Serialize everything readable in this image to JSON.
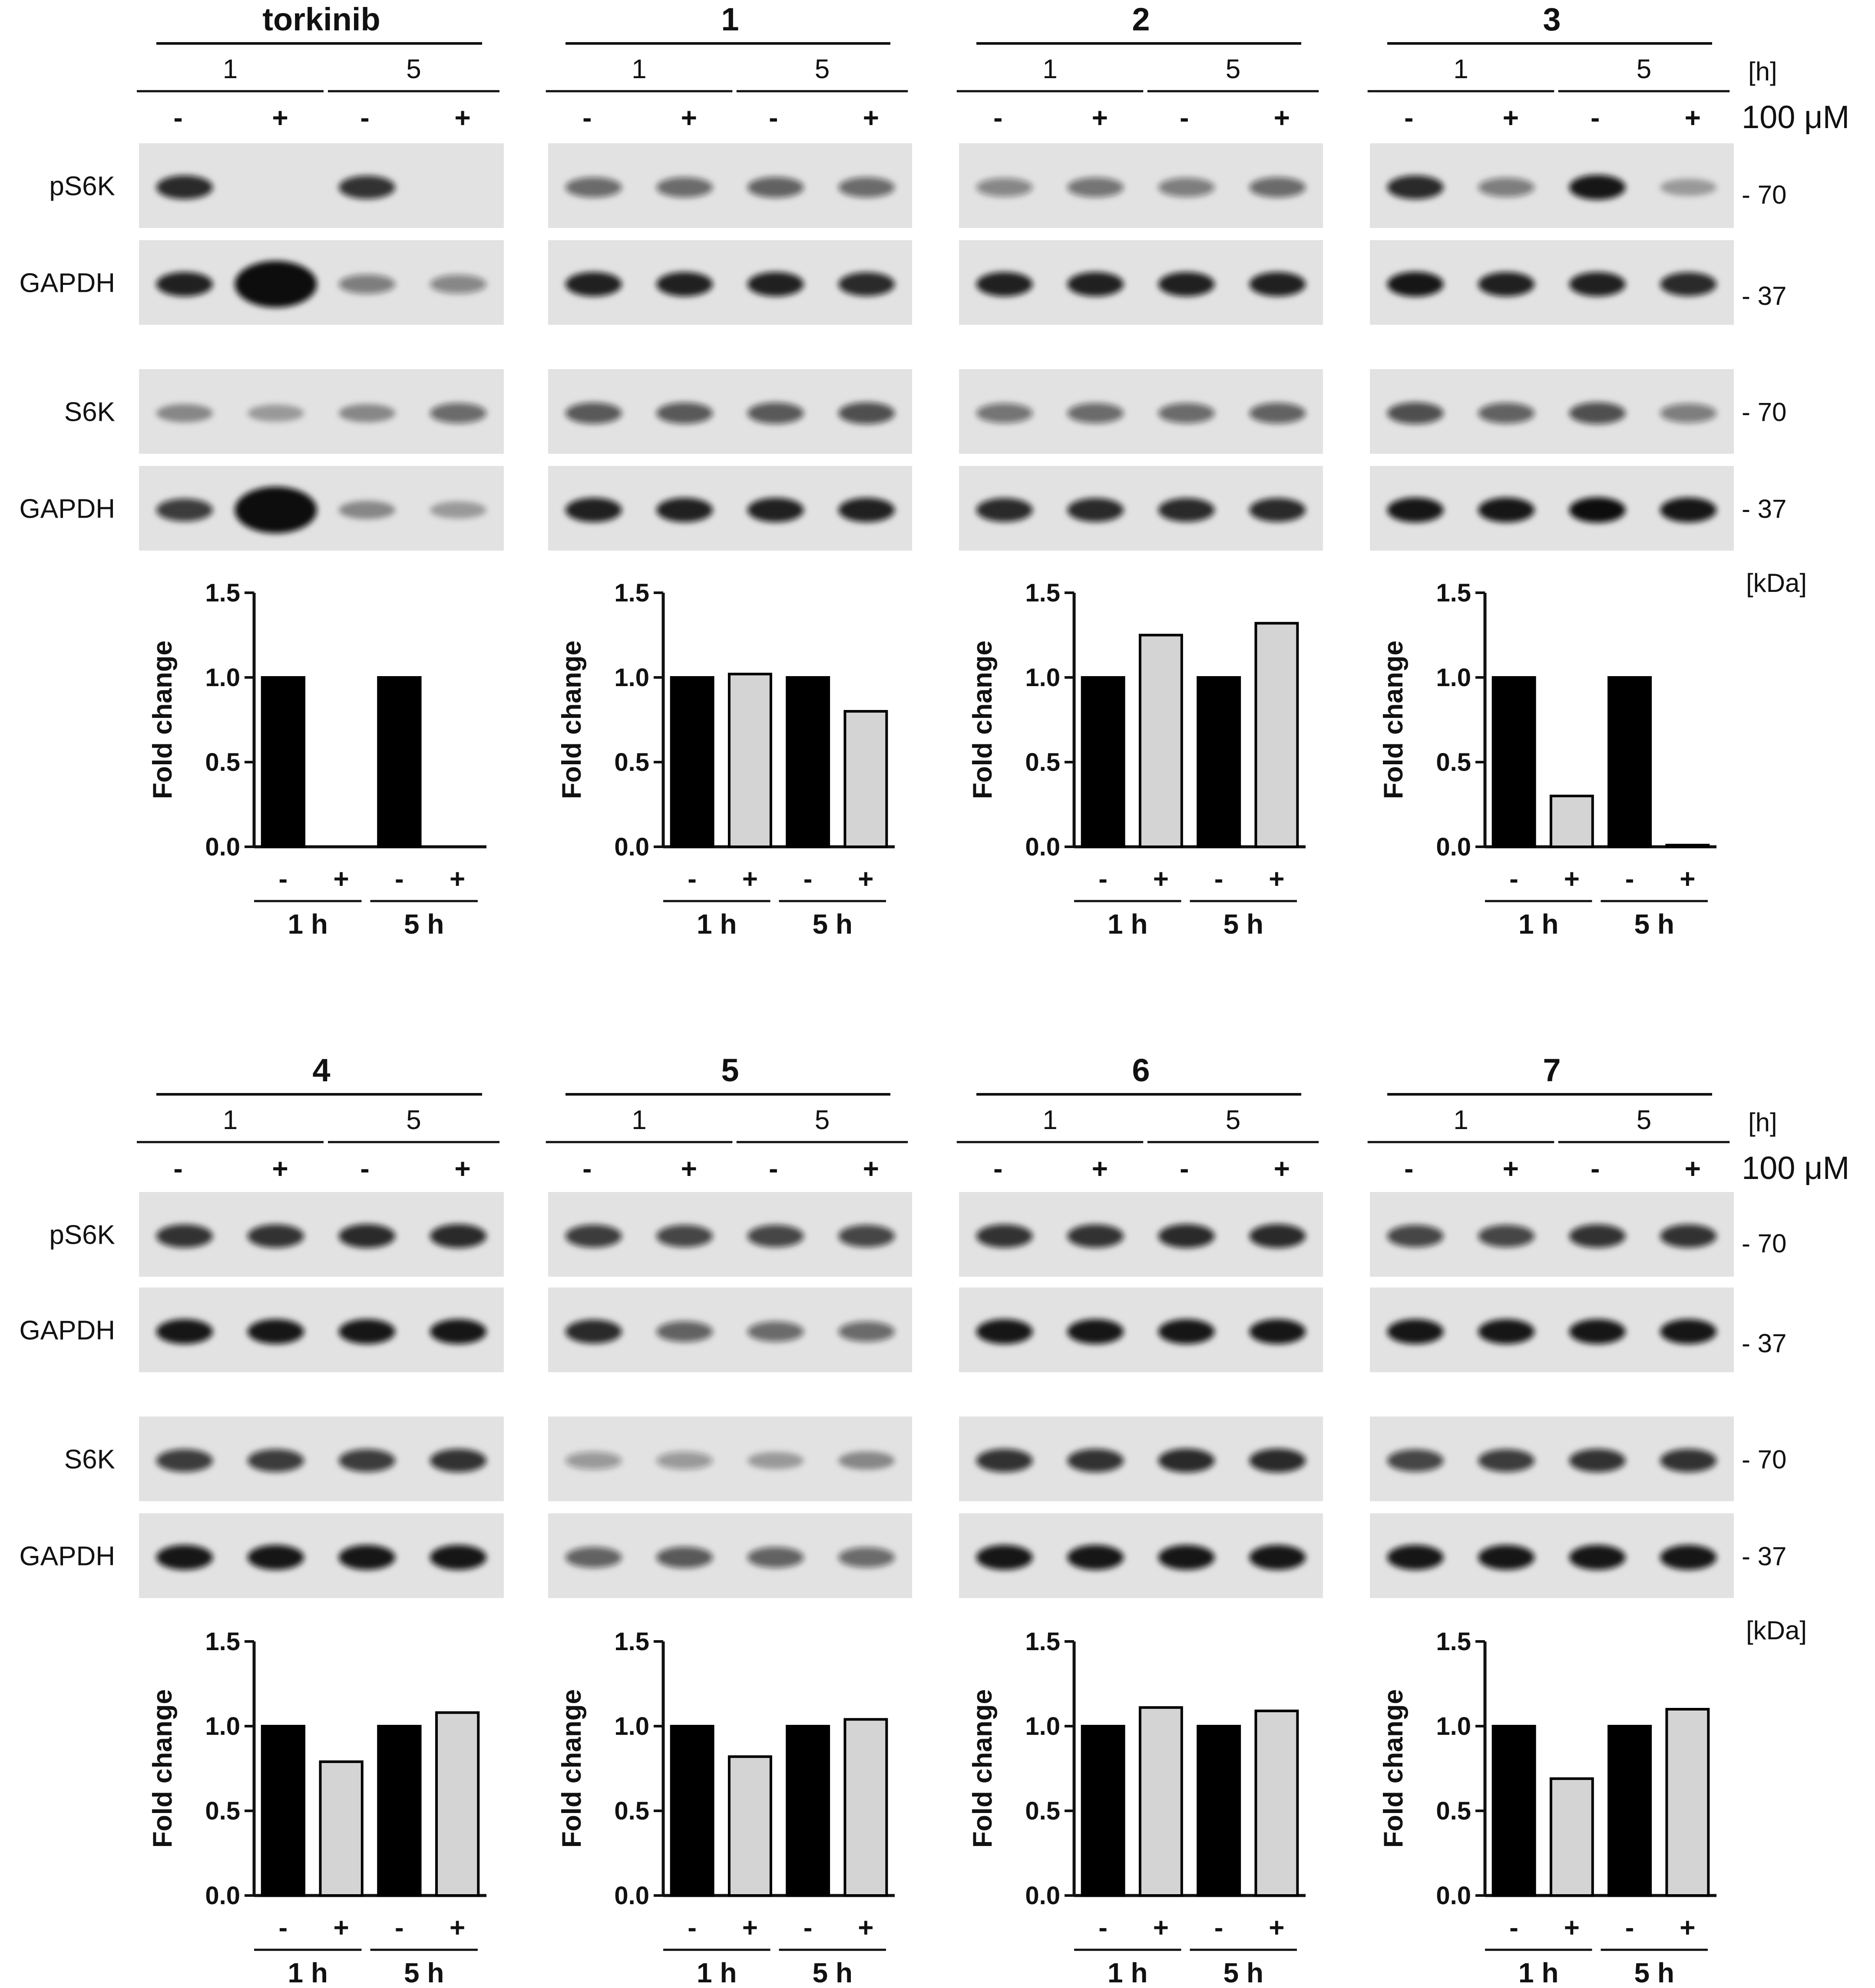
{
  "figure": {
    "row_labels": [
      "pS6K",
      "GAPDH",
      "S6K",
      "GAPDH"
    ],
    "kda_markers": [
      "- 70",
      "- 37",
      "- 70",
      "- 37"
    ],
    "kda_unit": "[kDa]",
    "time_unit": "[h]",
    "concentration": "100 μM",
    "panels": [
      {
        "title": "torkinib",
        "time_labels": [
          "1",
          "5"
        ],
        "treatments": [
          "-",
          "+",
          "-",
          "+"
        ]
      },
      {
        "title": "1",
        "time_labels": [
          "1",
          "5"
        ],
        "treatments": [
          "-",
          "+",
          "-",
          "+"
        ]
      },
      {
        "title": "2",
        "time_labels": [
          "1",
          "5"
        ],
        "treatments": [
          "-",
          "+",
          "-",
          "+"
        ]
      },
      {
        "title": "3",
        "time_labels": [
          "1",
          "5"
        ],
        "treatments": [
          "-",
          "+",
          "-",
          "+"
        ]
      },
      {
        "title": "4",
        "time_labels": [
          "1",
          "5"
        ],
        "treatments": [
          "-",
          "+",
          "-",
          "+"
        ]
      },
      {
        "title": "5",
        "time_labels": [
          "1",
          "5"
        ],
        "treatments": [
          "-",
          "+",
          "-",
          "+"
        ]
      },
      {
        "title": "6",
        "time_labels": [
          "1",
          "5"
        ],
        "treatments": [
          "-",
          "+",
          "-",
          "+"
        ]
      },
      {
        "title": "7",
        "time_labels": [
          "1",
          "5"
        ],
        "treatments": [
          "-",
          "+",
          "-",
          "+"
        ]
      }
    ]
  },
  "chart_data": [
    {
      "type": "bar",
      "panel": "torkinib",
      "ylabel": "Fold change",
      "ylim": [
        0,
        1.5
      ],
      "yticks": [
        "0.0",
        "0.5",
        "1.0",
        "1.5"
      ],
      "treatments": [
        "-",
        "+",
        "-",
        "+"
      ],
      "groups": [
        "1 h",
        "5 h"
      ],
      "values": [
        1.0,
        0.0,
        1.0,
        0.0
      ]
    },
    {
      "type": "bar",
      "panel": "1",
      "ylabel": "Fold change",
      "ylim": [
        0,
        1.5
      ],
      "yticks": [
        "0.0",
        "0.5",
        "1.0",
        "1.5"
      ],
      "treatments": [
        "-",
        "+",
        "-",
        "+"
      ],
      "groups": [
        "1 h",
        "5 h"
      ],
      "values": [
        1.0,
        1.02,
        1.0,
        0.8
      ]
    },
    {
      "type": "bar",
      "panel": "2",
      "ylabel": "Fold change",
      "ylim": [
        0,
        1.5
      ],
      "yticks": [
        "0.0",
        "0.5",
        "1.0",
        "1.5"
      ],
      "treatments": [
        "-",
        "+",
        "-",
        "+"
      ],
      "groups": [
        "1 h",
        "5 h"
      ],
      "values": [
        1.0,
        1.25,
        1.0,
        1.32
      ]
    },
    {
      "type": "bar",
      "panel": "3",
      "ylabel": "Fold change",
      "ylim": [
        0,
        1.5
      ],
      "yticks": [
        "0.0",
        "0.5",
        "1.0",
        "1.5"
      ],
      "treatments": [
        "-",
        "+",
        "-",
        "+"
      ],
      "groups": [
        "1 h",
        "5 h"
      ],
      "values": [
        1.0,
        0.3,
        1.0,
        0.01
      ]
    },
    {
      "type": "bar",
      "panel": "4",
      "ylabel": "Fold change",
      "ylim": [
        0,
        1.5
      ],
      "yticks": [
        "0.0",
        "0.5",
        "1.0",
        "1.5"
      ],
      "treatments": [
        "-",
        "+",
        "-",
        "+"
      ],
      "groups": [
        "1 h",
        "5 h"
      ],
      "values": [
        1.0,
        0.79,
        1.0,
        1.08
      ]
    },
    {
      "type": "bar",
      "panel": "5",
      "ylabel": "Fold change",
      "ylim": [
        0,
        1.5
      ],
      "yticks": [
        "0.0",
        "0.5",
        "1.0",
        "1.5"
      ],
      "treatments": [
        "-",
        "+",
        "-",
        "+"
      ],
      "groups": [
        "1 h",
        "5 h"
      ],
      "values": [
        1.0,
        0.82,
        1.0,
        1.04
      ]
    },
    {
      "type": "bar",
      "panel": "6",
      "ylabel": "Fold change",
      "ylim": [
        0,
        1.5
      ],
      "yticks": [
        "0.0",
        "0.5",
        "1.0",
        "1.5"
      ],
      "treatments": [
        "-",
        "+",
        "-",
        "+"
      ],
      "groups": [
        "1 h",
        "5 h"
      ],
      "values": [
        1.0,
        1.11,
        1.0,
        1.09
      ]
    },
    {
      "type": "bar",
      "panel": "7",
      "ylabel": "Fold change",
      "ylim": [
        0,
        1.5
      ],
      "yticks": [
        "0.0",
        "0.5",
        "1.0",
        "1.5"
      ],
      "treatments": [
        "-",
        "+",
        "-",
        "+"
      ],
      "groups": [
        "1 h",
        "5 h"
      ],
      "values": [
        1.0,
        0.69,
        1.0,
        1.1
      ]
    }
  ],
  "blots": [
    {
      "panel": "torkinib",
      "strips": [
        [
          0.85,
          0,
          0.8,
          0
        ],
        [
          0.9,
          1.0,
          0.4,
          0.35
        ],
        [
          0.3,
          0.2,
          0.3,
          0.5
        ],
        [
          0.75,
          1.0,
          0.3,
          0.2
        ]
      ]
    },
    {
      "panel": "1",
      "strips": [
        [
          0.5,
          0.5,
          0.55,
          0.5
        ],
        [
          0.9,
          0.9,
          0.9,
          0.85
        ],
        [
          0.6,
          0.6,
          0.6,
          0.65
        ],
        [
          0.9,
          0.9,
          0.9,
          0.9
        ]
      ]
    },
    {
      "panel": "2",
      "strips": [
        [
          0.35,
          0.45,
          0.4,
          0.5
        ],
        [
          0.9,
          0.9,
          0.9,
          0.9
        ],
        [
          0.45,
          0.5,
          0.5,
          0.55
        ],
        [
          0.85,
          0.85,
          0.85,
          0.85
        ]
      ]
    },
    {
      "panel": "3",
      "strips": [
        [
          0.85,
          0.4,
          0.95,
          0.2
        ],
        [
          0.95,
          0.9,
          0.9,
          0.85
        ],
        [
          0.65,
          0.55,
          0.65,
          0.4
        ],
        [
          0.95,
          0.95,
          1.0,
          0.95
        ]
      ]
    },
    {
      "panel": "4",
      "strips": [
        [
          0.8,
          0.8,
          0.85,
          0.85
        ],
        [
          0.95,
          0.95,
          0.95,
          0.95
        ],
        [
          0.75,
          0.75,
          0.75,
          0.8
        ],
        [
          0.95,
          0.95,
          0.95,
          0.95
        ]
      ]
    },
    {
      "panel": "5",
      "strips": [
        [
          0.75,
          0.7,
          0.7,
          0.7
        ],
        [
          0.85,
          0.55,
          0.5,
          0.5
        ],
        [
          0.25,
          0.25,
          0.2,
          0.3
        ],
        [
          0.55,
          0.6,
          0.55,
          0.5
        ]
      ]
    },
    {
      "panel": "6",
      "strips": [
        [
          0.8,
          0.8,
          0.85,
          0.85
        ],
        [
          0.95,
          0.95,
          0.95,
          0.95
        ],
        [
          0.8,
          0.8,
          0.85,
          0.85
        ],
        [
          0.95,
          0.95,
          0.95,
          0.95
        ]
      ]
    },
    {
      "panel": "7",
      "strips": [
        [
          0.7,
          0.7,
          0.8,
          0.8
        ],
        [
          0.95,
          0.95,
          0.95,
          0.95
        ],
        [
          0.7,
          0.75,
          0.8,
          0.8
        ],
        [
          0.95,
          0.95,
          0.95,
          0.95
        ]
      ]
    }
  ],
  "colors": {
    "control_bar": "#000000",
    "treated_bar": "#d4d4d4",
    "blot_background": "#e2e2e2",
    "band": "#101010"
  }
}
